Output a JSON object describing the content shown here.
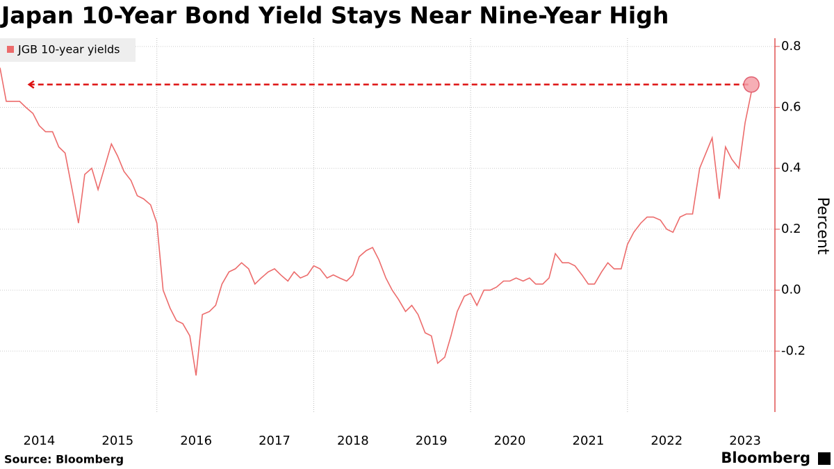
{
  "chart_data": {
    "type": "line",
    "title": "Japan 10-Year Bond Yield Stays Near Nine-Year High",
    "y_label": "Percent",
    "source": "Source: Bloomberg",
    "brand": "Bloomberg",
    "legend": "top-left",
    "x": [
      2014.0,
      2014.08,
      2014.17,
      2014.25,
      2014.33,
      2014.42,
      2014.5,
      2014.58,
      2014.67,
      2014.75,
      2014.83,
      2014.92,
      2015.0,
      2015.08,
      2015.17,
      2015.25,
      2015.33,
      2015.42,
      2015.5,
      2015.58,
      2015.67,
      2015.75,
      2015.83,
      2015.92,
      2016.0,
      2016.08,
      2016.17,
      2016.25,
      2016.33,
      2016.42,
      2016.5,
      2016.58,
      2016.67,
      2016.75,
      2016.83,
      2016.92,
      2017.0,
      2017.08,
      2017.17,
      2017.25,
      2017.33,
      2017.42,
      2017.5,
      2017.58,
      2017.67,
      2017.75,
      2017.83,
      2017.92,
      2018.0,
      2018.08,
      2018.17,
      2018.25,
      2018.33,
      2018.42,
      2018.5,
      2018.58,
      2018.67,
      2018.75,
      2018.83,
      2018.92,
      2019.0,
      2019.08,
      2019.17,
      2019.25,
      2019.33,
      2019.42,
      2019.5,
      2019.58,
      2019.67,
      2019.75,
      2019.83,
      2019.92,
      2020.0,
      2020.08,
      2020.17,
      2020.25,
      2020.33,
      2020.42,
      2020.5,
      2020.58,
      2020.67,
      2020.75,
      2020.83,
      2020.92,
      2021.0,
      2021.08,
      2021.17,
      2021.25,
      2021.33,
      2021.42,
      2021.5,
      2021.58,
      2021.67,
      2021.75,
      2021.83,
      2021.92,
      2022.0,
      2022.08,
      2022.17,
      2022.25,
      2022.33,
      2022.42,
      2022.5,
      2022.58,
      2022.67,
      2022.75,
      2022.83,
      2022.92,
      2023.0,
      2023.08,
      2023.17,
      2023.25,
      2023.33,
      2023.42,
      2023.5,
      2023.58
    ],
    "series": [
      {
        "name": "JGB 10-year yields",
        "color": "#ec6b6b",
        "values": [
          0.73,
          0.62,
          0.62,
          0.62,
          0.6,
          0.58,
          0.54,
          0.52,
          0.52,
          0.47,
          0.45,
          0.33,
          0.22,
          0.38,
          0.4,
          0.33,
          0.4,
          0.48,
          0.44,
          0.39,
          0.36,
          0.31,
          0.3,
          0.28,
          0.22,
          0.0,
          -0.06,
          -0.1,
          -0.11,
          -0.15,
          -0.28,
          -0.08,
          -0.07,
          -0.05,
          0.02,
          0.06,
          0.07,
          0.09,
          0.07,
          0.02,
          0.04,
          0.06,
          0.07,
          0.05,
          0.03,
          0.06,
          0.04,
          0.05,
          0.08,
          0.07,
          0.04,
          0.05,
          0.04,
          0.03,
          0.05,
          0.11,
          0.13,
          0.14,
          0.1,
          0.04,
          0.0,
          -0.03,
          -0.07,
          -0.05,
          -0.08,
          -0.14,
          -0.15,
          -0.24,
          -0.22,
          -0.15,
          -0.07,
          -0.02,
          -0.01,
          -0.05,
          0.0,
          0.0,
          0.01,
          0.03,
          0.03,
          0.04,
          0.03,
          0.04,
          0.02,
          0.02,
          0.04,
          0.12,
          0.09,
          0.09,
          0.08,
          0.05,
          0.02,
          0.02,
          0.06,
          0.09,
          0.07,
          0.07,
          0.15,
          0.19,
          0.22,
          0.24,
          0.24,
          0.23,
          0.2,
          0.19,
          0.24,
          0.25,
          0.25,
          0.4,
          0.45,
          0.5,
          0.3,
          0.47,
          0.43,
          0.4,
          0.55,
          0.65
        ]
      }
    ],
    "xlim": [
      2014.0,
      2023.88
    ],
    "xticks": [
      {
        "value": 2014.5,
        "label": "2014"
      },
      {
        "value": 2015.5,
        "label": "2015"
      },
      {
        "value": 2016.5,
        "label": "2016"
      },
      {
        "value": 2017.5,
        "label": "2017"
      },
      {
        "value": 2018.5,
        "label": "2018"
      },
      {
        "value": 2019.5,
        "label": "2019"
      },
      {
        "value": 2020.5,
        "label": "2020"
      },
      {
        "value": 2021.5,
        "label": "2021"
      },
      {
        "value": 2022.5,
        "label": "2022"
      },
      {
        "value": 2023.5,
        "label": "2023"
      }
    ],
    "xgrid": [
      2016,
      2018,
      2020,
      2022
    ],
    "ylim": [
      -0.4,
      0.827
    ],
    "yticks": [
      -0.2,
      {
        "value": 0,
        "label": "0.0"
      },
      0.2,
      0.4,
      0.6,
      0.8
    ],
    "reference_line": {
      "value": 0.675,
      "from_x": 2014.37,
      "color": "#dd1111"
    },
    "highlight": {
      "x": 2023.58,
      "y": 0.675,
      "color": "#f4a0a8"
    }
  }
}
